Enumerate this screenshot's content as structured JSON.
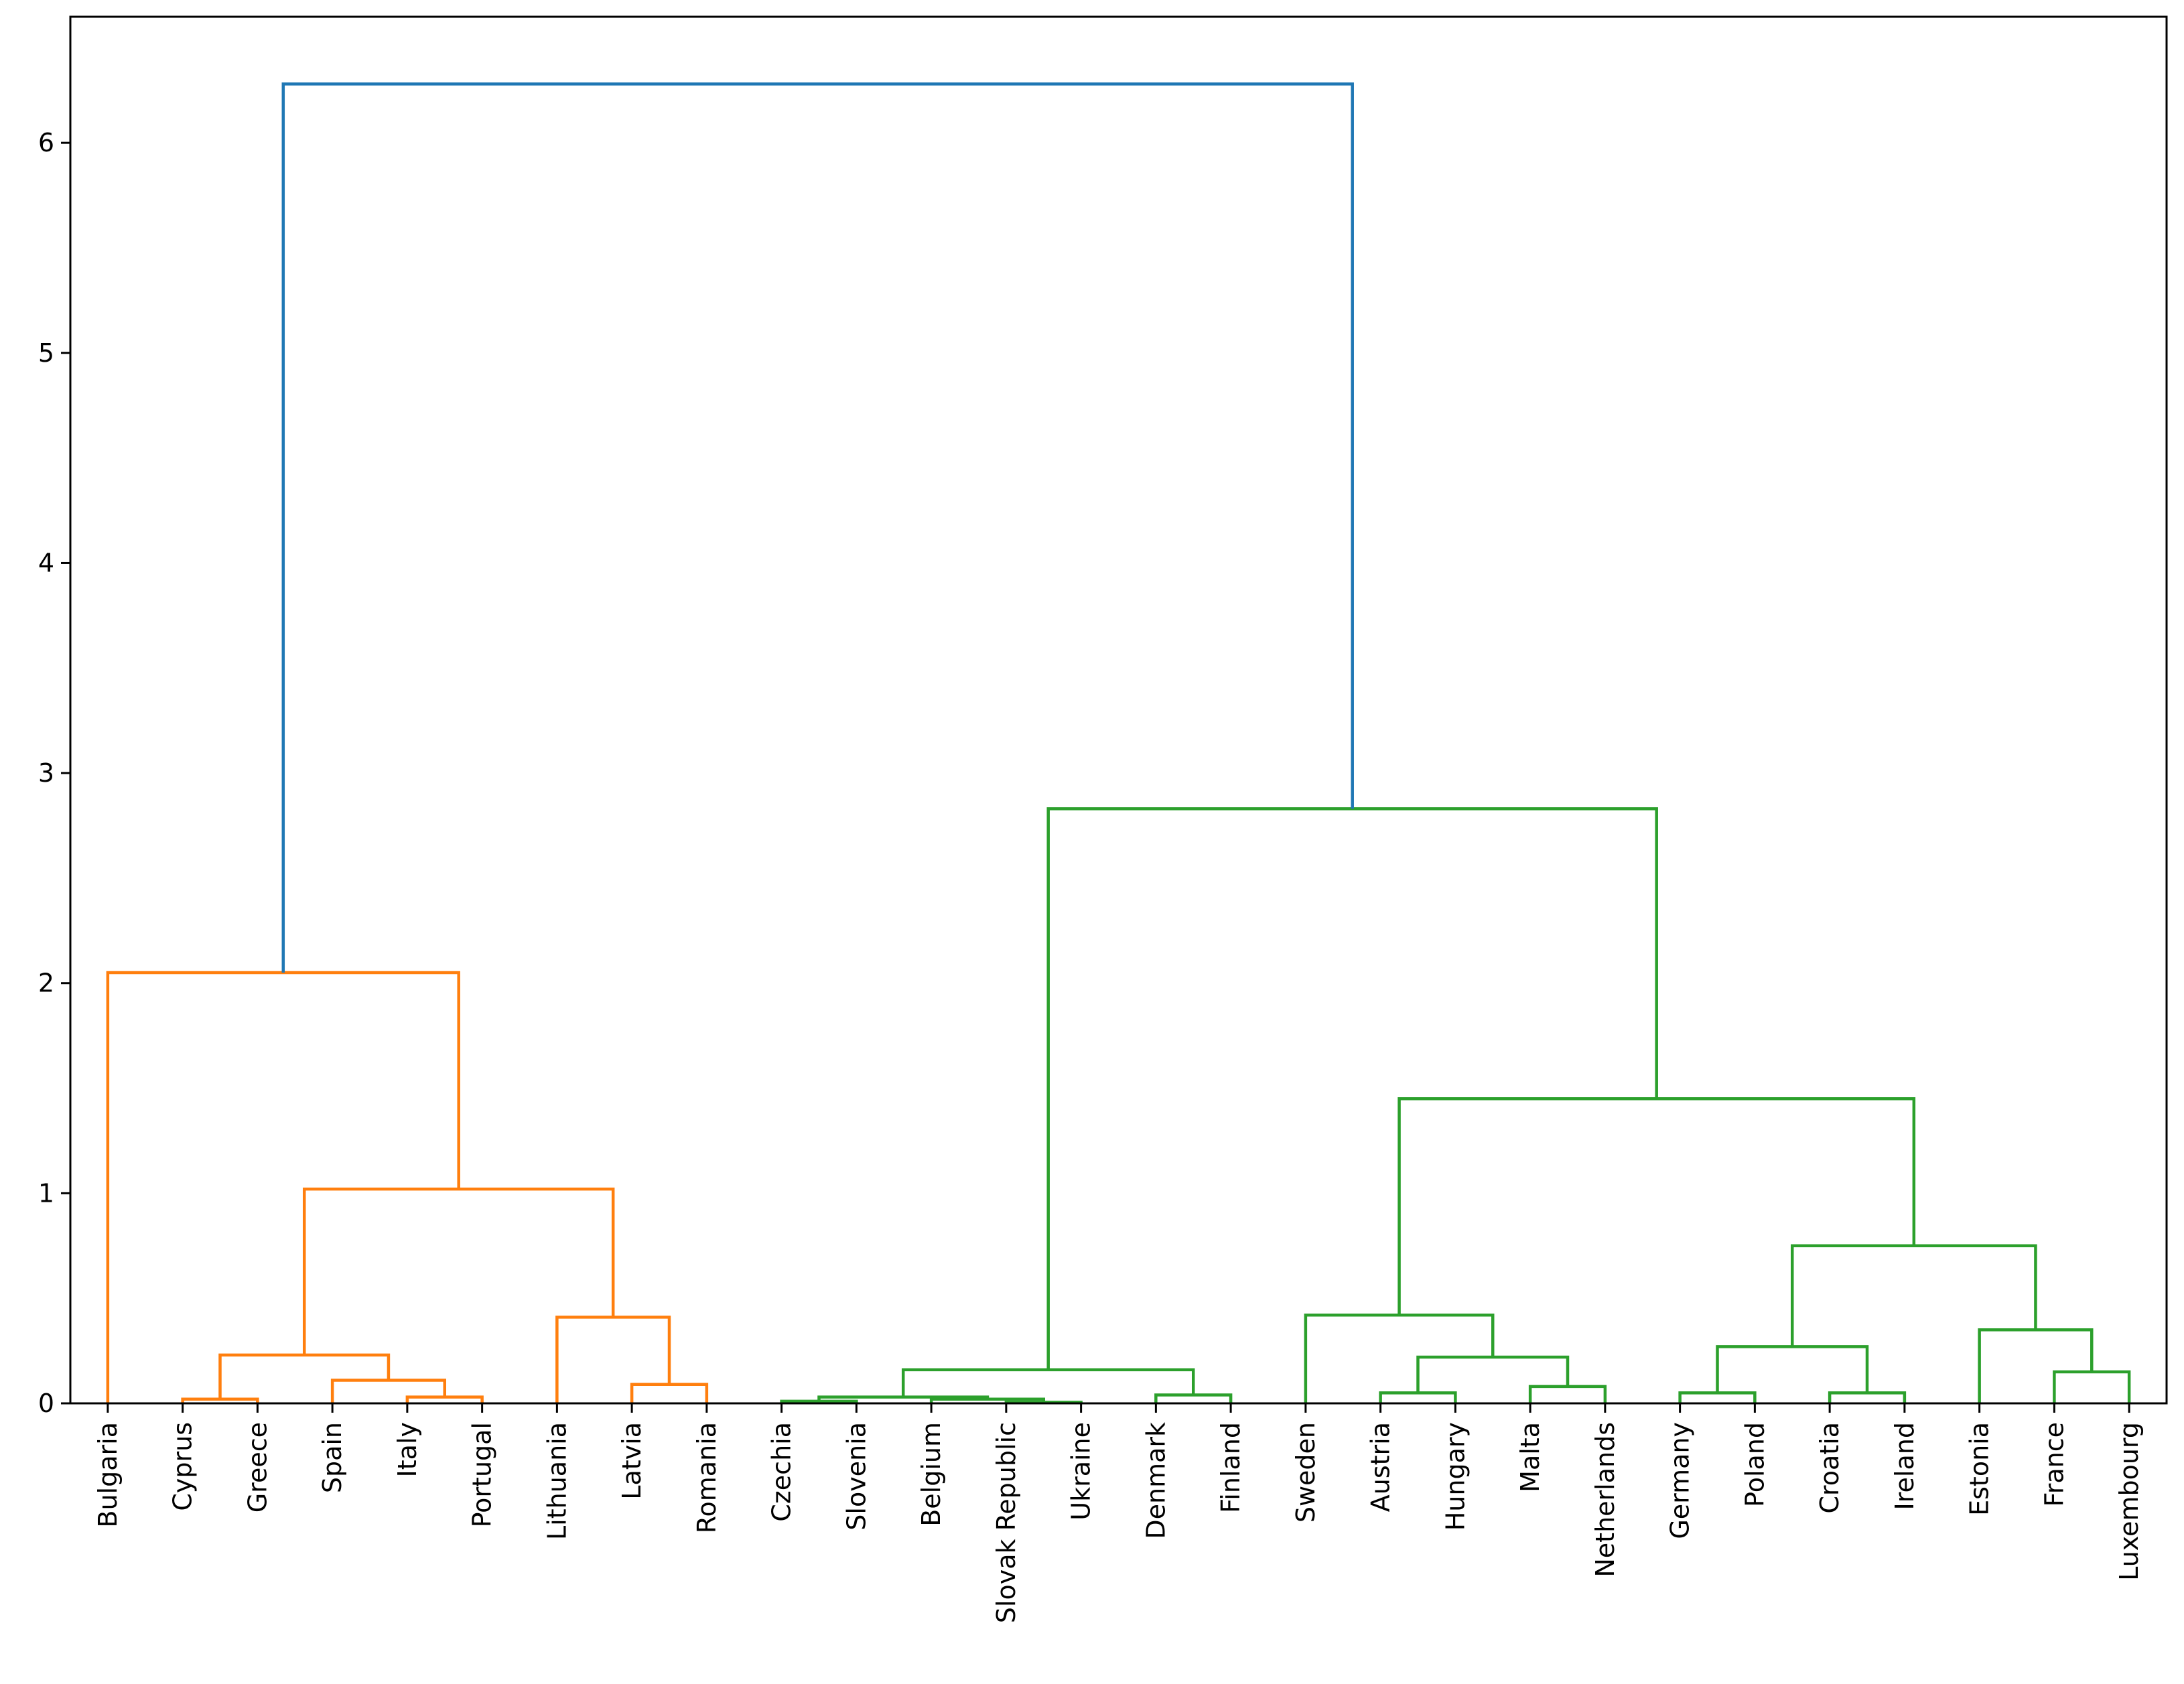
{
  "chart_data": {
    "type": "dendrogram",
    "title": "",
    "xlabel": "",
    "ylabel": "",
    "ylim": [
      0,
      6.6
    ],
    "yticks": [
      "0",
      "1",
      "2",
      "3",
      "4",
      "5",
      "6"
    ],
    "grid": false,
    "leaves": [
      "Bulgaria",
      "Cyprus",
      "Greece",
      "Spain",
      "Italy",
      "Portugal",
      "Lithuania",
      "Latvia",
      "Romania",
      "Czechia",
      "Slovenia",
      "Belgium",
      "Slovak Republic",
      "Ukraine",
      "Denmark",
      "Finland",
      "Sweden",
      "Austria",
      "Hungary",
      "Malta",
      "Netherlands",
      "Germany",
      "Poland",
      "Croatia",
      "Ireland",
      "Estonia",
      "France",
      "Luxembourg"
    ],
    "colors": {
      "root": "#1f77b4",
      "cluster_1": "#ff7f0e",
      "cluster_2": "#2ca02c"
    },
    "merges": [
      {
        "left": "Cyprus",
        "right": "Greece",
        "height": 0.02,
        "color": "cluster_1"
      },
      {
        "left": "Italy",
        "right": "Portugal",
        "height": 0.03,
        "color": "cluster_1"
      },
      {
        "left": "Spain",
        "right": "Italy+Portugal",
        "height": 0.11,
        "color": "cluster_1"
      },
      {
        "left": "Cyprus+Greece",
        "right": "Spain+Italy+Portugal",
        "height": 0.23,
        "color": "cluster_1"
      },
      {
        "left": "Latvia",
        "right": "Romania",
        "height": 0.09,
        "color": "cluster_1"
      },
      {
        "left": "Lithuania",
        "right": "Latvia+Romania",
        "height": 0.41,
        "color": "cluster_1"
      },
      {
        "left": "Southern group",
        "right": "Baltic group",
        "height": 1.02,
        "color": "cluster_1"
      },
      {
        "left": "Bulgaria",
        "right": "rest of cluster 1",
        "height": 2.05,
        "color": "cluster_1"
      },
      {
        "left": "Czechia",
        "right": "Slovenia",
        "height": 0.01,
        "color": "cluster_2"
      },
      {
        "left": "Slovak Republic",
        "right": "Ukraine",
        "height": 0.005,
        "color": "cluster_2"
      },
      {
        "left": "Belgium",
        "right": "Slovak Republic+Ukraine",
        "height": 0.02,
        "color": "cluster_2"
      },
      {
        "left": "Czechia+Slovenia",
        "right": "Belgium+Slovak Republic+Ukraine",
        "height": 0.03,
        "color": "cluster_2"
      },
      {
        "left": "Denmark",
        "right": "Finland",
        "height": 0.04,
        "color": "cluster_2"
      },
      {
        "left": "Central group",
        "right": "Denmark+Finland",
        "height": 0.16,
        "color": "cluster_2"
      },
      {
        "left": "Austria",
        "right": "Hungary",
        "height": 0.05,
        "color": "cluster_2"
      },
      {
        "left": "Malta",
        "right": "Netherlands",
        "height": 0.08,
        "color": "cluster_2"
      },
      {
        "left": "Austria+Hungary",
        "right": "Malta+Netherlands",
        "height": 0.22,
        "color": "cluster_2"
      },
      {
        "left": "Sweden",
        "right": "Austria+Hungary+Malta+Netherlands",
        "height": 0.42,
        "color": "cluster_2"
      },
      {
        "left": "Germany",
        "right": "Poland",
        "height": 0.05,
        "color": "cluster_2"
      },
      {
        "left": "Croatia",
        "right": "Ireland",
        "height": 0.05,
        "color": "cluster_2"
      },
      {
        "left": "Germany+Poland",
        "right": "Croatia+Ireland",
        "height": 0.27,
        "color": "cluster_2"
      },
      {
        "left": "France",
        "right": "Luxembourg",
        "height": 0.15,
        "color": "cluster_2"
      },
      {
        "left": "Estonia",
        "right": "France+Luxembourg",
        "height": 0.35,
        "color": "cluster_2"
      },
      {
        "left": "Germany+Poland+Croatia+Ireland",
        "right": "Estonia+France+Luxembourg",
        "height": 0.75,
        "color": "cluster_2"
      },
      {
        "left": "Sweden group",
        "right": "Western group",
        "height": 1.45,
        "color": "cluster_2"
      },
      {
        "left": "Central/Nordic group",
        "right": "Sweden/Western group",
        "height": 2.83,
        "color": "cluster_2"
      },
      {
        "left": "cluster 1",
        "right": "cluster 2",
        "height": 6.28,
        "color": "root"
      }
    ]
  }
}
